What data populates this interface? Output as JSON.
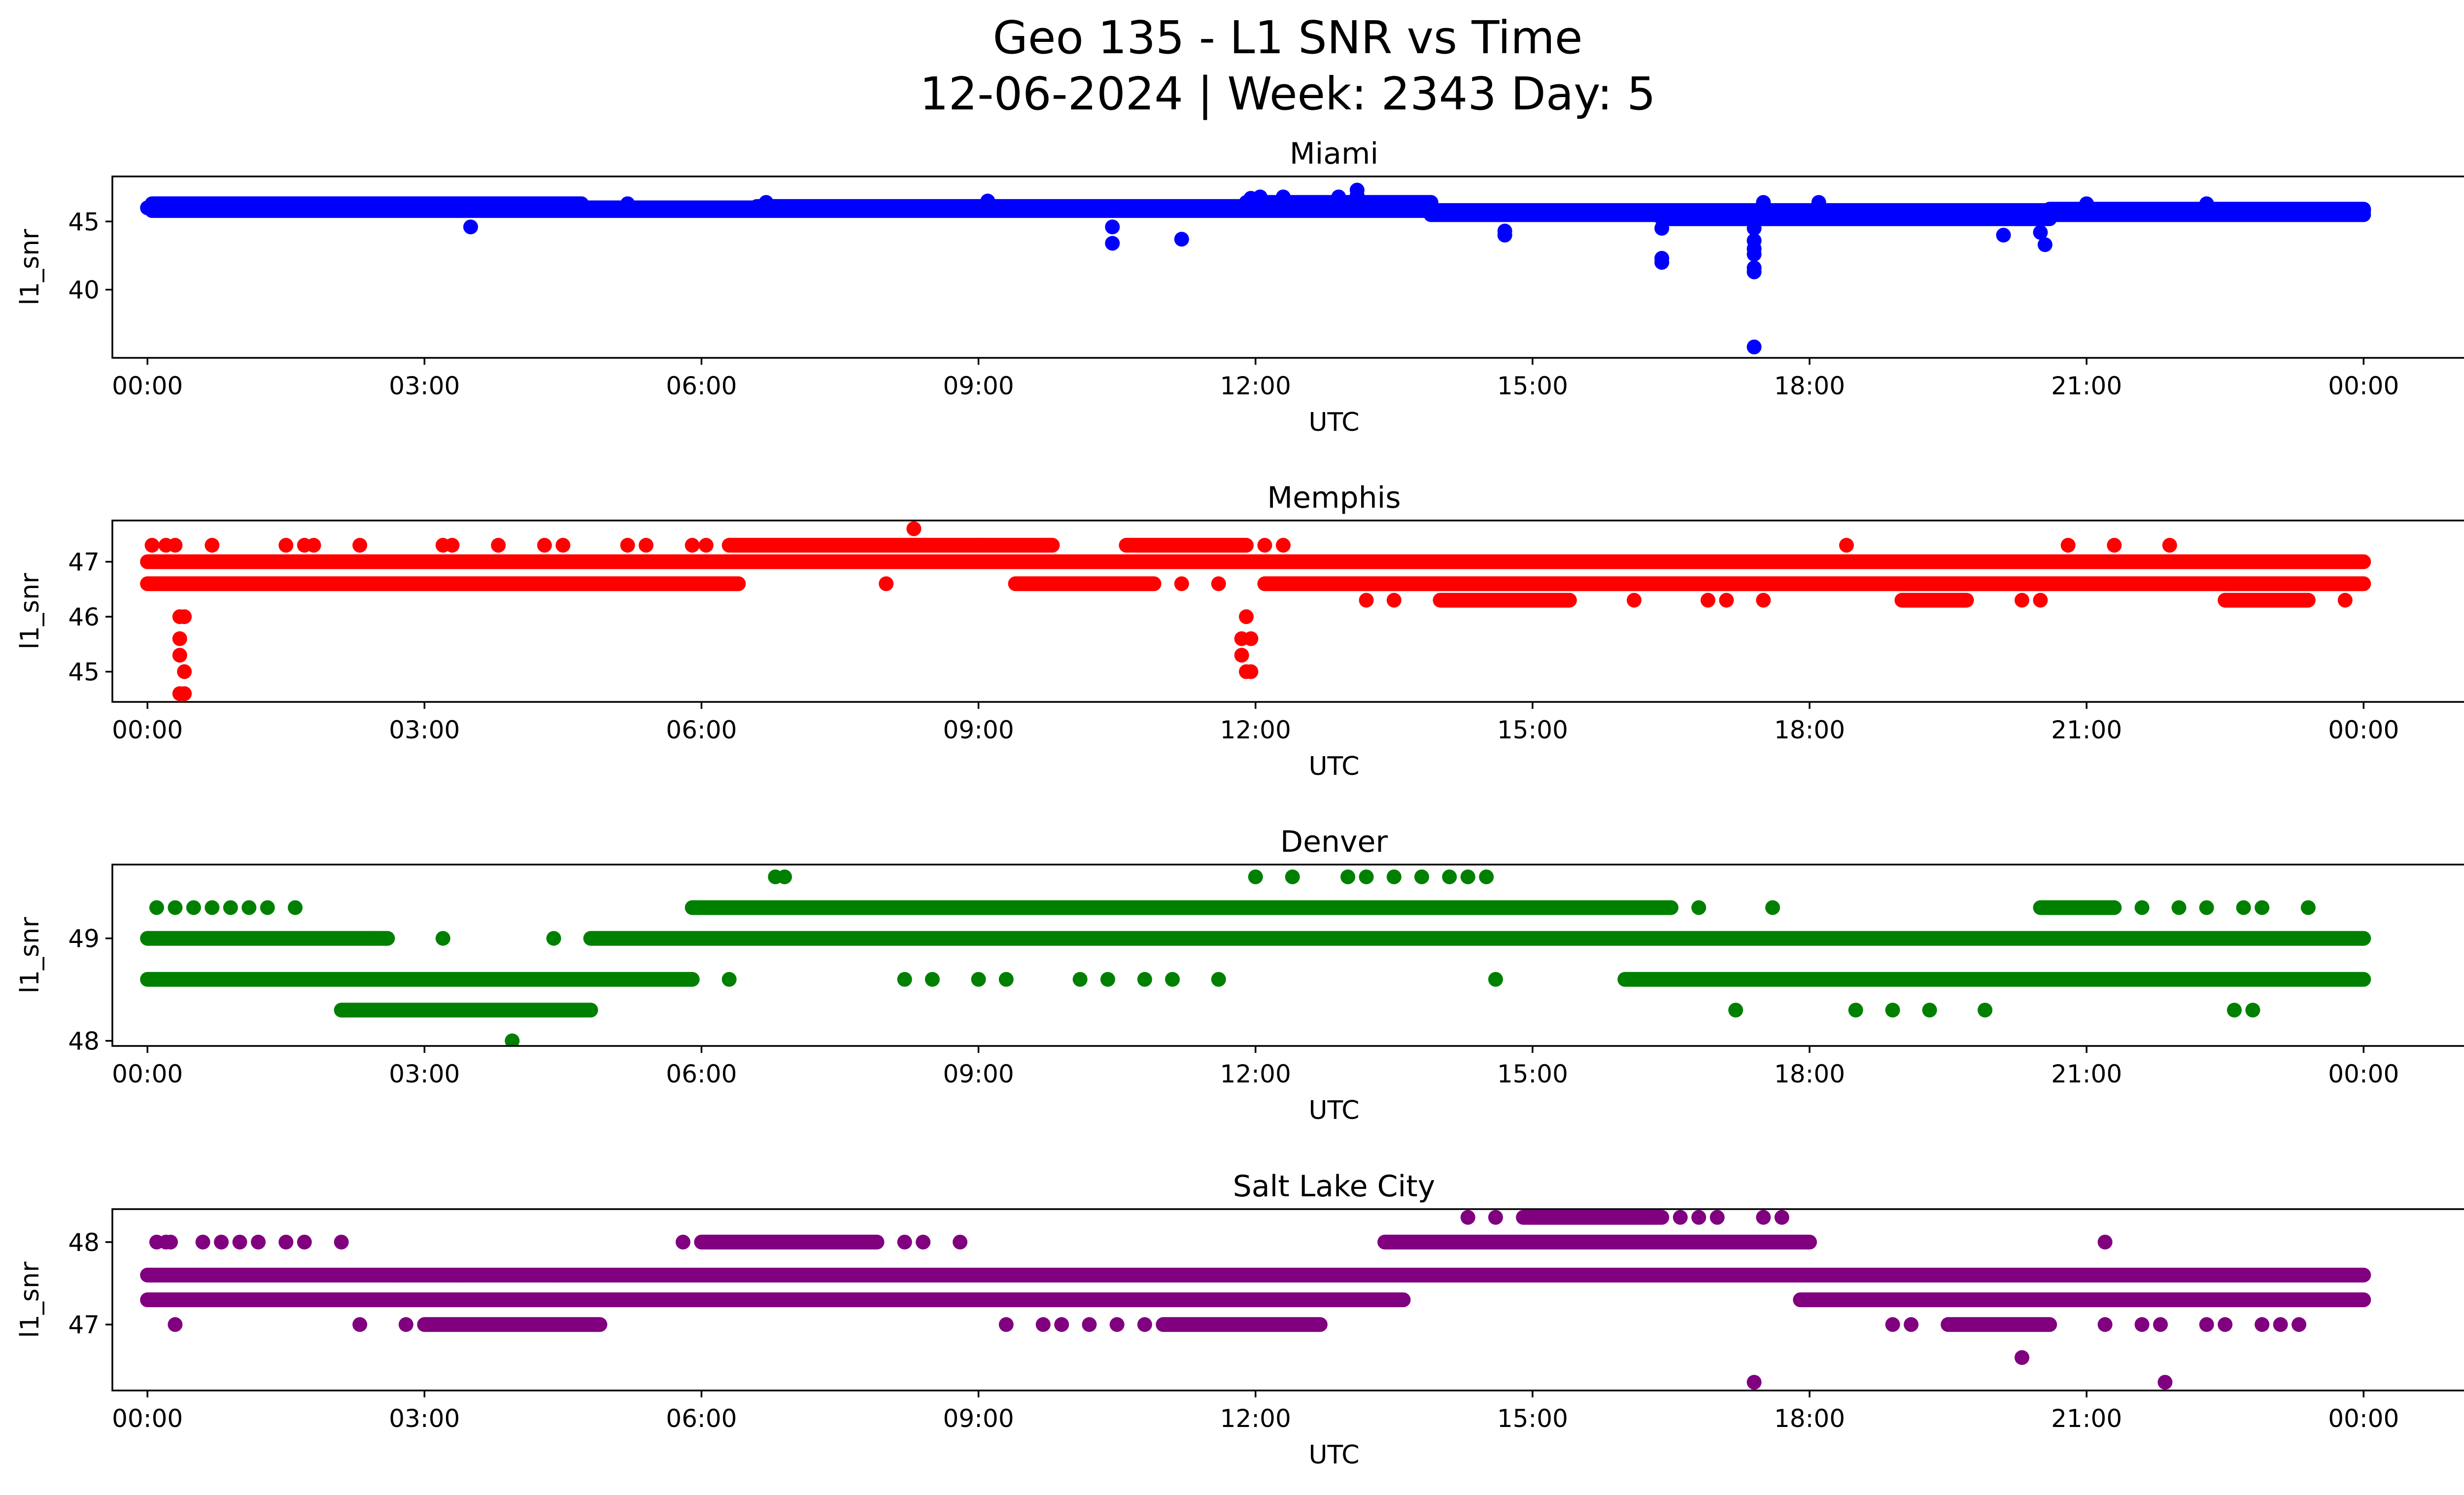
{
  "figure": {
    "title_line1": "Geo 135 - L1 SNR vs Time",
    "title_line2": "12-06-2024 | Week: 2343 Day: 5"
  },
  "chart_data": [
    {
      "type": "scatter",
      "title": "Miami",
      "xlabel": "UTC",
      "ylabel": "l1_snr",
      "color": "#0000ff",
      "xlim": [
        -0.38,
        26.08
      ],
      "ylim": [
        35,
        48.3
      ],
      "xticks": [
        0,
        3,
        6,
        9,
        12,
        15,
        18,
        21,
        24
      ],
      "xtick_labels": [
        "00:00",
        "03:00",
        "06:00",
        "09:00",
        "12:00",
        "15:00",
        "18:00",
        "21:00",
        "00:00"
      ],
      "yticks": [
        40,
        45
      ],
      "ytick_labels": [
        "40",
        "45"
      ],
      "bands": [
        {
          "y": 46.0,
          "x0": 0.0,
          "x1": 11.9
        },
        {
          "y": 46.3,
          "x0": 0.05,
          "x1": 4.7
        },
        {
          "y": 45.8,
          "x0": 0.05,
          "x1": 24.0
        },
        {
          "y": 46.4,
          "x0": 11.9,
          "x1": 13.9
        },
        {
          "y": 46.1,
          "x0": 6.6,
          "x1": 13.9
        },
        {
          "y": 45.5,
          "x0": 13.9,
          "x1": 24.0
        },
        {
          "y": 45.2,
          "x0": 16.4,
          "x1": 20.6
        },
        {
          "y": 45.9,
          "x0": 20.6,
          "x1": 24.0
        }
      ],
      "points": [
        [
          0.05,
          45.8
        ],
        [
          0.2,
          46.3
        ],
        [
          0.3,
          46.3
        ],
        [
          0.45,
          46.3
        ],
        [
          1.0,
          46.3
        ],
        [
          3.0,
          46.3
        ],
        [
          3.5,
          44.6
        ],
        [
          5.2,
          46.3
        ],
        [
          6.7,
          46.4
        ],
        [
          9.1,
          46.5
        ],
        [
          10.45,
          44.6
        ],
        [
          10.45,
          43.4
        ],
        [
          11.2,
          43.7
        ],
        [
          11.95,
          46.7
        ],
        [
          12.05,
          46.8
        ],
        [
          12.3,
          46.8
        ],
        [
          12.9,
          46.8
        ],
        [
          13.1,
          47.3
        ],
        [
          13.1,
          46.9
        ],
        [
          14.7,
          44.0
        ],
        [
          14.7,
          44.3
        ],
        [
          16.4,
          44.5
        ],
        [
          16.4,
          42.3
        ],
        [
          16.4,
          42.0
        ],
        [
          17.4,
          44.5
        ],
        [
          17.4,
          43.6
        ],
        [
          17.4,
          43.0
        ],
        [
          17.4,
          42.6
        ],
        [
          17.4,
          41.6
        ],
        [
          17.4,
          41.3
        ],
        [
          17.4,
          35.8
        ],
        [
          17.5,
          46.4
        ],
        [
          18.1,
          46.4
        ],
        [
          20.1,
          44.0
        ],
        [
          20.5,
          44.2
        ],
        [
          20.55,
          43.3
        ],
        [
          21.0,
          46.3
        ],
        [
          22.3,
          46.3
        ]
      ]
    },
    {
      "type": "scatter",
      "title": "Memphis",
      "xlabel": "UTC",
      "ylabel": "l1_snr",
      "color": "#ff0000",
      "xlim": [
        -0.38,
        26.08
      ],
      "ylim": [
        44.45,
        47.75
      ],
      "xticks": [
        0,
        3,
        6,
        9,
        12,
        15,
        18,
        21,
        24
      ],
      "xtick_labels": [
        "00:00",
        "03:00",
        "06:00",
        "09:00",
        "12:00",
        "15:00",
        "18:00",
        "21:00",
        "00:00"
      ],
      "yticks": [
        45,
        46,
        47
      ],
      "ytick_labels": [
        "45",
        "46",
        "47"
      ],
      "bands": [
        {
          "y": 47.0,
          "x0": 0.0,
          "x1": 24.0
        },
        {
          "y": 46.6,
          "x0": 0.0,
          "x1": 6.4
        },
        {
          "y": 46.6,
          "x0": 9.4,
          "x1": 10.9
        },
        {
          "y": 46.6,
          "x0": 12.1,
          "x1": 24.0
        },
        {
          "y": 47.3,
          "x0": 6.3,
          "x1": 9.8
        },
        {
          "y": 47.3,
          "x0": 10.6,
          "x1": 11.9
        },
        {
          "y": 46.3,
          "x0": 14.0,
          "x1": 15.4
        },
        {
          "y": 46.3,
          "x0": 19.0,
          "x1": 19.7
        },
        {
          "y": 46.3,
          "x0": 22.5,
          "x1": 23.4
        }
      ],
      "points": [
        [
          0.05,
          47.3
        ],
        [
          0.2,
          47.3
        ],
        [
          0.3,
          47.3
        ],
        [
          0.7,
          47.3
        ],
        [
          1.5,
          47.3
        ],
        [
          1.7,
          47.3
        ],
        [
          1.8,
          47.3
        ],
        [
          2.3,
          47.3
        ],
        [
          3.2,
          47.3
        ],
        [
          3.3,
          47.3
        ],
        [
          3.8,
          47.3
        ],
        [
          4.3,
          47.3
        ],
        [
          4.5,
          47.3
        ],
        [
          5.2,
          47.3
        ],
        [
          5.4,
          47.3
        ],
        [
          5.9,
          47.3
        ],
        [
          6.05,
          47.3
        ],
        [
          12.1,
          47.3
        ],
        [
          12.3,
          47.3
        ],
        [
          8.3,
          47.6
        ],
        [
          0.35,
          46.0
        ],
        [
          0.4,
          46.0
        ],
        [
          0.35,
          45.6
        ],
        [
          0.35,
          45.3
        ],
        [
          0.4,
          45.0
        ],
        [
          0.35,
          44.6
        ],
        [
          0.4,
          44.6
        ],
        [
          11.9,
          46.0
        ],
        [
          11.85,
          45.6
        ],
        [
          11.95,
          45.6
        ],
        [
          11.85,
          45.3
        ],
        [
          11.9,
          45.0
        ],
        [
          11.95,
          45.0
        ],
        [
          13.2,
          46.3
        ],
        [
          13.5,
          46.3
        ],
        [
          16.1,
          46.3
        ],
        [
          16.9,
          46.3
        ],
        [
          17.1,
          46.3
        ],
        [
          17.5,
          46.3
        ],
        [
          20.3,
          46.3
        ],
        [
          20.5,
          46.3
        ],
        [
          23.8,
          46.3
        ],
        [
          18.4,
          47.3
        ],
        [
          20.8,
          47.3
        ],
        [
          21.3,
          47.3
        ],
        [
          21.9,
          47.3
        ],
        [
          8.0,
          46.6
        ],
        [
          11.2,
          46.6
        ],
        [
          11.6,
          46.6
        ],
        [
          9.0,
          47.3
        ]
      ]
    },
    {
      "type": "scatter",
      "title": "Denver",
      "xlabel": "UTC",
      "ylabel": "l1_snr",
      "color": "#008000",
      "xlim": [
        -0.38,
        26.08
      ],
      "ylim": [
        47.95,
        49.72
      ],
      "xticks": [
        0,
        3,
        6,
        9,
        12,
        15,
        18,
        21,
        24
      ],
      "xtick_labels": [
        "00:00",
        "03:00",
        "06:00",
        "09:00",
        "12:00",
        "15:00",
        "18:00",
        "21:00",
        "00:00"
      ],
      "yticks": [
        48,
        49
      ],
      "ytick_labels": [
        "48",
        "49"
      ],
      "bands": [
        {
          "y": 49.0,
          "x0": 0.0,
          "x1": 2.6
        },
        {
          "y": 49.0,
          "x0": 4.8,
          "x1": 24.0
        },
        {
          "y": 48.6,
          "x0": 0.0,
          "x1": 5.9
        },
        {
          "y": 48.6,
          "x0": 16.0,
          "x1": 24.0
        },
        {
          "y": 48.3,
          "x0": 2.1,
          "x1": 4.8
        },
        {
          "y": 49.3,
          "x0": 5.9,
          "x1": 16.5
        },
        {
          "y": 49.3,
          "x0": 20.5,
          "x1": 21.3
        }
      ],
      "points": [
        [
          0.1,
          49.3
        ],
        [
          0.3,
          49.3
        ],
        [
          0.5,
          49.3
        ],
        [
          0.7,
          49.3
        ],
        [
          0.9,
          49.3
        ],
        [
          1.1,
          49.3
        ],
        [
          1.3,
          49.3
        ],
        [
          1.6,
          49.3
        ],
        [
          2.4,
          49.0
        ],
        [
          3.2,
          49.0
        ],
        [
          4.4,
          49.0
        ],
        [
          3.95,
          48.0
        ],
        [
          6.3,
          48.6
        ],
        [
          8.2,
          48.6
        ],
        [
          8.5,
          48.6
        ],
        [
          9.0,
          48.6
        ],
        [
          9.3,
          48.6
        ],
        [
          10.1,
          48.6
        ],
        [
          10.4,
          48.6
        ],
        [
          10.8,
          48.6
        ],
        [
          11.1,
          48.6
        ],
        [
          11.6,
          48.6
        ],
        [
          14.6,
          48.6
        ],
        [
          6.8,
          49.6
        ],
        [
          6.9,
          49.6
        ],
        [
          12.0,
          49.6
        ],
        [
          12.4,
          49.6
        ],
        [
          13.0,
          49.6
        ],
        [
          13.2,
          49.6
        ],
        [
          13.5,
          49.6
        ],
        [
          13.8,
          49.6
        ],
        [
          14.1,
          49.6
        ],
        [
          14.3,
          49.6
        ],
        [
          14.5,
          49.6
        ],
        [
          16.8,
          49.3
        ],
        [
          17.6,
          49.3
        ],
        [
          17.2,
          48.3
        ],
        [
          18.5,
          48.3
        ],
        [
          18.9,
          48.3
        ],
        [
          19.3,
          48.3
        ],
        [
          19.9,
          48.3
        ],
        [
          21.6,
          49.3
        ],
        [
          22.0,
          49.3
        ],
        [
          22.3,
          49.3
        ],
        [
          22.7,
          49.3
        ],
        [
          22.9,
          49.3
        ],
        [
          23.4,
          49.3
        ],
        [
          22.6,
          48.3
        ],
        [
          22.8,
          48.3
        ]
      ]
    },
    {
      "type": "scatter",
      "title": "Salt Lake City",
      "xlabel": "UTC",
      "ylabel": "l1_snr",
      "color": "#800080",
      "xlim": [
        -0.38,
        26.08
      ],
      "ylim": [
        46.2,
        48.4
      ],
      "xticks": [
        0,
        3,
        6,
        9,
        12,
        15,
        18,
        21,
        24
      ],
      "xtick_labels": [
        "00:00",
        "03:00",
        "06:00",
        "09:00",
        "12:00",
        "15:00",
        "18:00",
        "21:00",
        "00:00"
      ],
      "yticks": [
        47,
        48
      ],
      "ytick_labels": [
        "47",
        "48"
      ],
      "bands": [
        {
          "y": 47.6,
          "x0": 0.0,
          "x1": 24.0
        },
        {
          "y": 47.3,
          "x0": 0.0,
          "x1": 13.6
        },
        {
          "y": 47.3,
          "x0": 17.9,
          "x1": 24.0
        },
        {
          "y": 47.0,
          "x0": 3.0,
          "x1": 4.9
        },
        {
          "y": 47.0,
          "x0": 11.0,
          "x1": 12.7
        },
        {
          "y": 48.0,
          "x0": 6.0,
          "x1": 7.9
        },
        {
          "y": 48.0,
          "x0": 13.4,
          "x1": 18.0
        },
        {
          "y": 48.3,
          "x0": 14.9,
          "x1": 16.4
        },
        {
          "y": 47.0,
          "x0": 19.5,
          "x1": 20.6
        }
      ],
      "points": [
        [
          0.1,
          48.0
        ],
        [
          0.2,
          48.0
        ],
        [
          0.25,
          48.0
        ],
        [
          0.6,
          48.0
        ],
        [
          0.8,
          48.0
        ],
        [
          1.0,
          48.0
        ],
        [
          1.2,
          48.0
        ],
        [
          1.5,
          48.0
        ],
        [
          1.7,
          48.0
        ],
        [
          2.1,
          48.0
        ],
        [
          0.3,
          47.0
        ],
        [
          2.3,
          47.0
        ],
        [
          2.8,
          47.0
        ],
        [
          5.8,
          48.0
        ],
        [
          8.2,
          48.0
        ],
        [
          8.4,
          48.0
        ],
        [
          8.8,
          48.0
        ],
        [
          9.3,
          47.0
        ],
        [
          9.7,
          47.0
        ],
        [
          9.9,
          47.0
        ],
        [
          10.2,
          47.0
        ],
        [
          10.5,
          47.0
        ],
        [
          10.8,
          47.0
        ],
        [
          14.3,
          48.3
        ],
        [
          14.6,
          48.3
        ],
        [
          16.6,
          48.3
        ],
        [
          16.8,
          48.3
        ],
        [
          17.0,
          48.3
        ],
        [
          17.5,
          48.3
        ],
        [
          17.7,
          48.3
        ],
        [
          17.4,
          46.3
        ],
        [
          18.9,
          47.0
        ],
        [
          19.1,
          47.0
        ],
        [
          20.3,
          46.6
        ],
        [
          21.2,
          48.0
        ],
        [
          21.2,
          47.0
        ],
        [
          21.6,
          47.0
        ],
        [
          21.8,
          47.0
        ],
        [
          21.85,
          46.3
        ],
        [
          22.3,
          47.0
        ],
        [
          22.5,
          47.0
        ],
        [
          22.9,
          47.0
        ],
        [
          23.1,
          47.0
        ],
        [
          23.3,
          47.0
        ],
        [
          2.7,
          47.6
        ],
        [
          3.4,
          47.6
        ],
        [
          3.6,
          47.6
        ],
        [
          4.4,
          47.6
        ]
      ]
    }
  ]
}
